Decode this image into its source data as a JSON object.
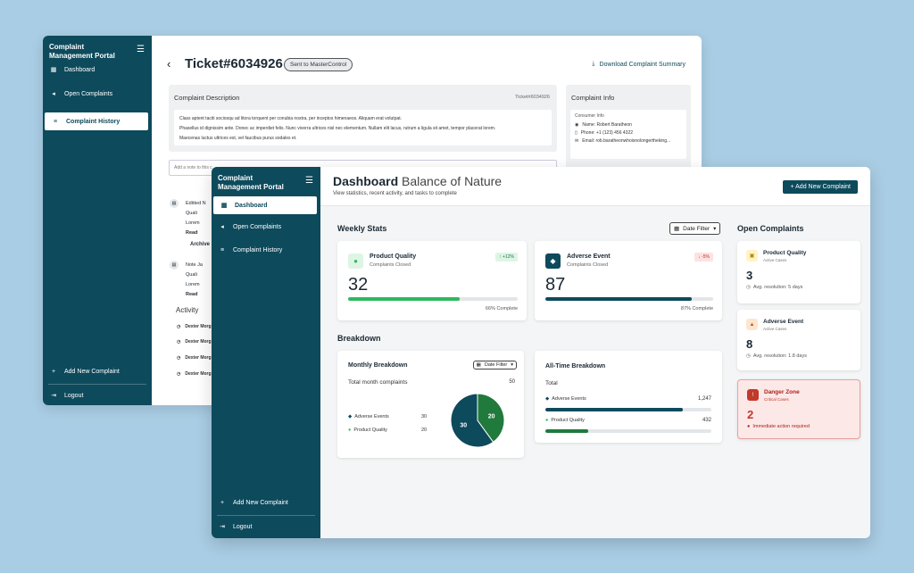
{
  "sidebar": {
    "title": "Complaint Management Portal",
    "collapse_icon": "collapse-menu-icon",
    "items": [
      {
        "label": "Dashboard",
        "icon": "dashboard-icon"
      },
      {
        "label": "Open Complaints",
        "icon": "megaphone-icon"
      },
      {
        "label": "Complaint History",
        "icon": "list-icon"
      }
    ],
    "add_new": "Add New Complaint",
    "logout": "Logout"
  },
  "back_window": {
    "ticket": "Ticket#6034926",
    "badge": "Sent to MasterControl",
    "download": "Download Complaint Summary",
    "description": {
      "title": "Complaint Description",
      "ticket_ref": "Ticket#6034926",
      "lines": [
        "Class aptent taciti sociosqu ad litora torquent per conubia nostra, per inceptos himenaeos. Aliquam erat volutpat.",
        "Phasellus id dignissim ante. Donec ac imperdiet felis. Nunc viverra ultrices nisl nec elementum. Nullam elit lacus, rutrum a ligula sit amet, tempor placerat lorem.",
        "Maecenas luctus ultrices est, vel faucibus purus sodales et."
      ]
    },
    "note_placeholder": "Add a note to this c",
    "info": {
      "title": "Complaint Info",
      "section": "Consumer Info",
      "name": "Name: Robert Baratheon",
      "phone": "Phone: +1 (123) 456 4322",
      "email": "Email: rob.baratheonwhoisnolongertheking..."
    },
    "timeline": [
      {
        "title": "Editted N",
        "user": "Quali",
        "text": "Lorem",
        "link": "Read"
      },
      {
        "title": "Note  Ja",
        "user": "Quali",
        "text": "Lorem",
        "link": "Read"
      }
    ],
    "archive": "Archive",
    "activity_title": "Activity",
    "activity": [
      "Dexter Morg",
      "Dexter Morg",
      "Dexter Morg",
      "Dexter Morg"
    ]
  },
  "front_window": {
    "title": "Dashboard",
    "title_sub": "Balance of Nature",
    "subtitle": "View statistics, recent activity, and tasks to complete",
    "add_button": "+ Add New Complaint",
    "weekly_title": "Weekly Stats",
    "date_filter": "Date Filter",
    "stats": [
      {
        "name": "Product Quality",
        "desc": "Complaints Closed",
        "change": "↑ +12%",
        "value": "32",
        "progress": 66,
        "complete": "66% Complete",
        "color": "#2eb85c",
        "icon": "check-circle-icon"
      },
      {
        "name": "Adverse Event",
        "desc": "Complaints Closed",
        "change": "↓ -5%",
        "value": "87",
        "progress": 87,
        "complete": "87% Complete",
        "color": "#0d4a5c",
        "icon": "shield-icon"
      }
    ],
    "breakdown_title": "Breakdown",
    "monthly": {
      "title": "Monthly Breakdown",
      "filter": "Date Filter",
      "total_label": "Total month complaints",
      "total": "50",
      "legend": [
        {
          "name": "Adverse Events",
          "value": "30",
          "color": "#0d4a5c"
        },
        {
          "name": "Product Quality",
          "value": "20",
          "color": "#1f7a3c"
        }
      ]
    },
    "alltime": {
      "title": "All-Time Breakdown",
      "total_label": "Total",
      "rows": [
        {
          "name": "Adverse Events",
          "count": "1,247",
          "fraction": 0.83,
          "color": "#0d4a5c"
        },
        {
          "name": "Product Quality",
          "count": "432",
          "fraction": 0.26,
          "color": "#1f7a3c"
        }
      ]
    },
    "open_title": "Open Complaints",
    "open": [
      {
        "name": "Product Quality",
        "sub": "Active Cases",
        "value": "3",
        "note": "Avg. resolution: 5 days"
      },
      {
        "name": "Adverse Event",
        "sub": "Active Cases",
        "value": "8",
        "note": "Avg. resolution: 1.8 days"
      },
      {
        "name": "Danger Zone",
        "sub": "Critical Cases",
        "value": "2",
        "note": "Immediate action required"
      }
    ]
  },
  "chart_data": {
    "type": "pie",
    "categories": [
      "Adverse Events",
      "Product Quality"
    ],
    "values": [
      30,
      20
    ],
    "colors": [
      "#0d4a5c",
      "#1f7a3c"
    ]
  }
}
